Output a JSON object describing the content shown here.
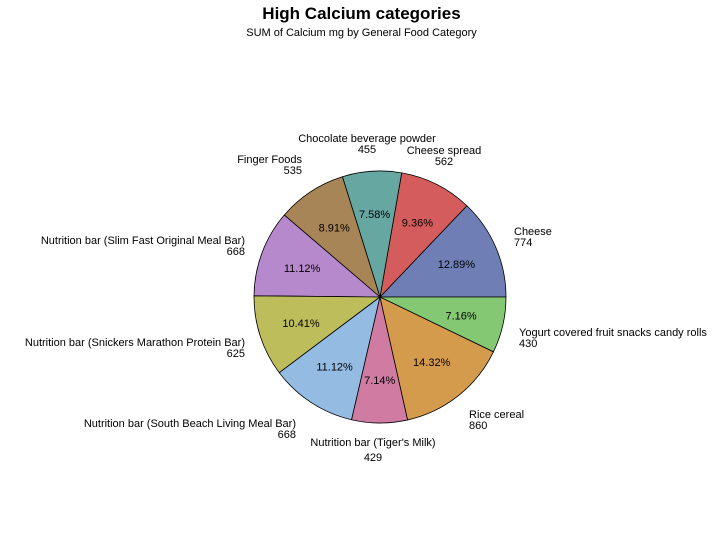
{
  "chart_data": {
    "type": "pie",
    "title": "High Calcium categories",
    "subtitle": "SUM of Calcium mg by General Food Category",
    "slices": [
      {
        "label": "Cheese",
        "value": 774,
        "percent": "12.89%",
        "color": "#6f7fb6"
      },
      {
        "label": "Cheese spread",
        "value": 562,
        "percent": "9.36%",
        "color": "#d45c5c"
      },
      {
        "label": "Chocolate beverage powder",
        "value": 455,
        "percent": "7.58%",
        "color": "#66a8a1"
      },
      {
        "label": "Finger Foods",
        "value": 535,
        "percent": "8.91%",
        "color": "#a88556"
      },
      {
        "label": "Nutrition bar (Slim Fast Original Meal Bar)",
        "value": 668,
        "percent": "11.12%",
        "color": "#b689cc"
      },
      {
        "label": "Nutrition bar (Snickers Marathon Protein Bar)",
        "value": 625,
        "percent": "10.41%",
        "color": "#bdbd5c"
      },
      {
        "label": "Nutrition bar (South Beach Living Meal Bar)",
        "value": 668,
        "percent": "11.12%",
        "color": "#94bce3"
      },
      {
        "label": "Nutrition bar (Tiger's Milk)",
        "value": 429,
        "percent": "7.14%",
        "color": "#cf7ba2"
      },
      {
        "label": "Rice cereal",
        "value": 860,
        "percent": "14.32%",
        "color": "#d39b4b"
      },
      {
        "label": "Yogurt covered fruit snacks candy rolls",
        "value": 430,
        "percent": "7.16%",
        "color": "#85c873"
      }
    ]
  }
}
